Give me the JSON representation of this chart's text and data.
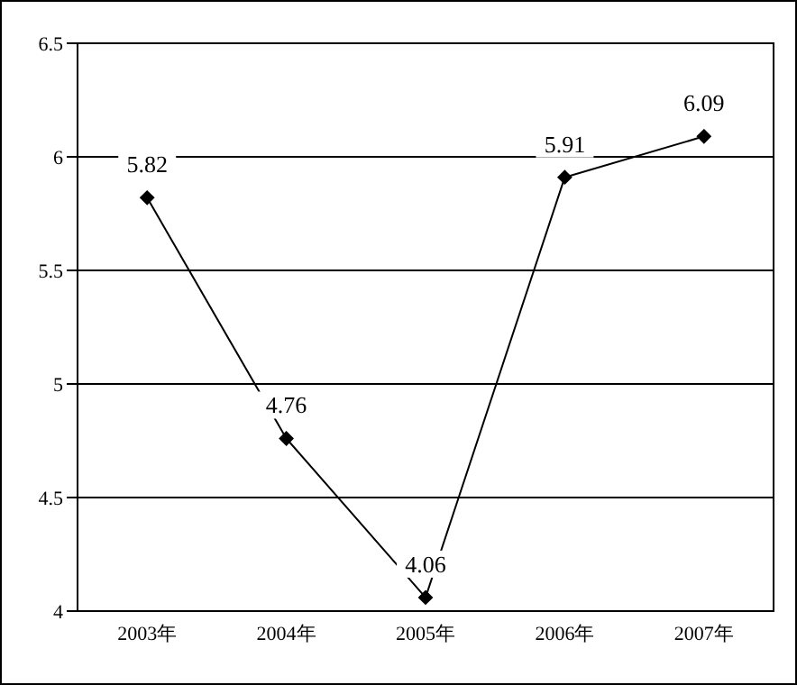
{
  "chart_data": {
    "type": "line",
    "categories": [
      "2003年",
      "2004年",
      "2005年",
      "2006年",
      "2007年"
    ],
    "series": [
      {
        "color": "#000000",
        "values": [
          5.82,
          4.76,
          4.06,
          5.91,
          6.09
        ]
      }
    ],
    "ylim": [
      4,
      6.5
    ],
    "yticks": [
      4,
      4.5,
      5,
      5.5,
      6,
      6.5
    ],
    "grid": "y",
    "marker": "diamond",
    "line_style": "solid",
    "data_labels": true
  }
}
